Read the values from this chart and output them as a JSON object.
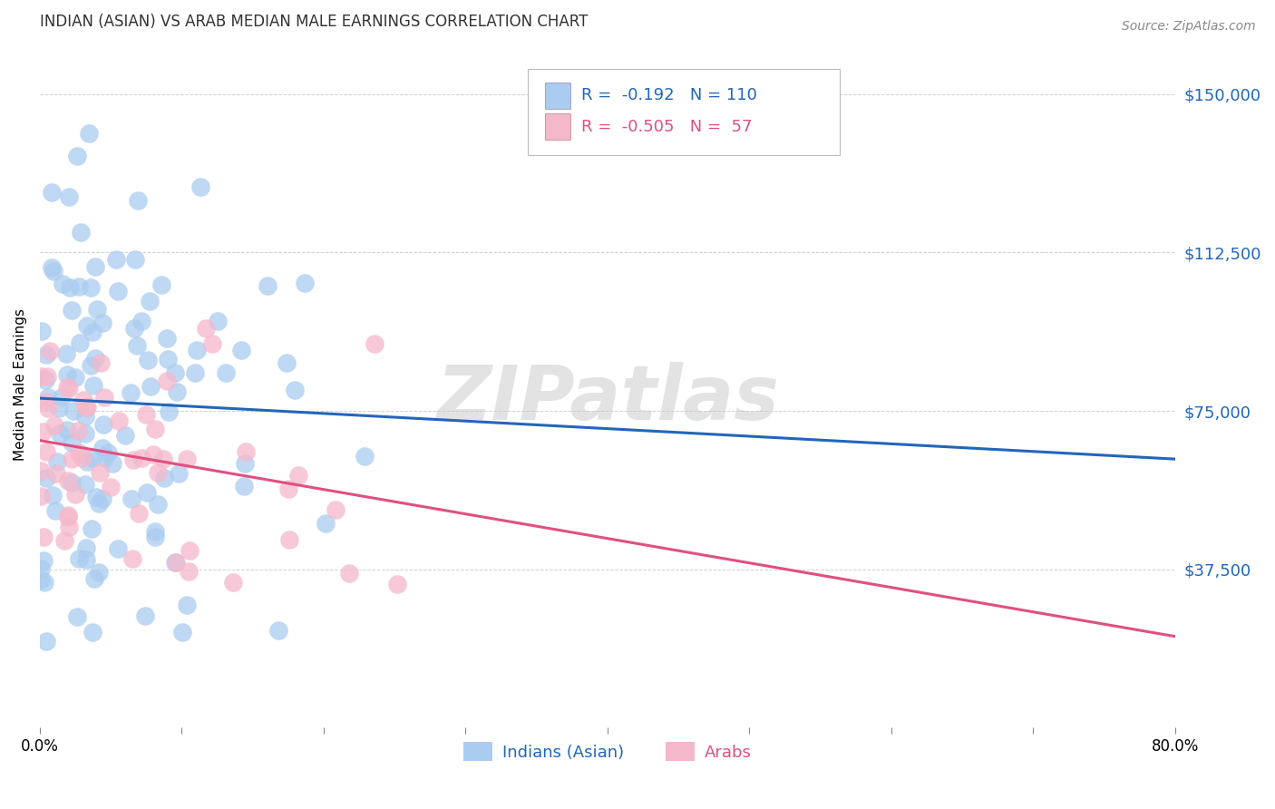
{
  "title": "INDIAN (ASIAN) VS ARAB MEDIAN MALE EARNINGS CORRELATION CHART",
  "source": "Source: ZipAtlas.com",
  "ylabel": "Median Male Earnings",
  "ytick_labels": [
    "$37,500",
    "$75,000",
    "$112,500",
    "$150,000"
  ],
  "ytick_values": [
    37500,
    75000,
    112500,
    150000
  ],
  "ymin": 0,
  "ymax": 162500,
  "xmin": 0.0,
  "xmax": 0.8,
  "blue_color": "#aaccf0",
  "pink_color": "#f5b8cb",
  "blue_line_color": "#2266bb",
  "pink_line_color": "#e05080",
  "watermark_text": "ZIPatlas",
  "background_color": "#ffffff",
  "blue_intercept": 78000,
  "blue_slope": -18000,
  "pink_intercept": 68000,
  "pink_slope": -58000,
  "legend_text1": "R =  -0.192   N = 110",
  "legend_text2": "R =  -0.505   N =  57",
  "legend_label1": "Indians (Asian)",
  "legend_label2": "Arabs"
}
